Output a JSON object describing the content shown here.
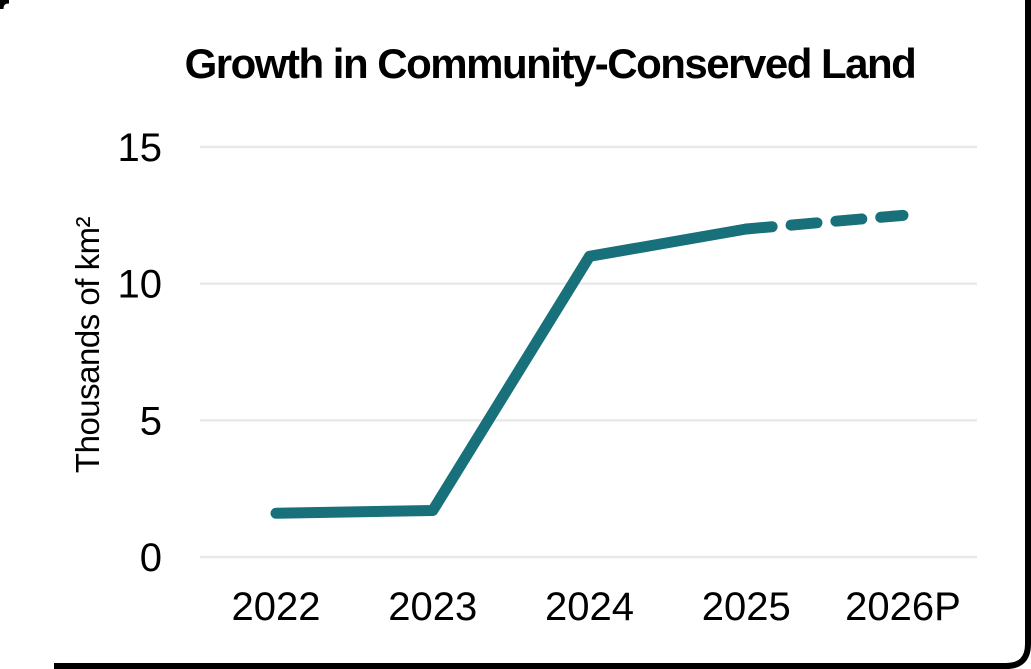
{
  "page": {
    "background": "#ffffff",
    "frame_color": "#000000"
  },
  "chart_data": {
    "type": "line",
    "title": "Growth in Community-Conserved Land",
    "ylabel": "Thousands of km²",
    "xlabel": "",
    "categories": [
      "2022",
      "2023",
      "2024",
      "2025",
      "2026P"
    ],
    "series": [
      {
        "values": [
          1.6,
          1.7,
          11,
          12,
          12.5
        ],
        "color": "#17707a",
        "solid_until_index": 3,
        "dashed_after": true,
        "dashed_segment": "2025 to 2026P drawn dashed (projected value)"
      }
    ],
    "yticks": [
      0,
      5,
      10,
      15
    ],
    "ylim": [
      0,
      15
    ],
    "grid": "horizontal",
    "gridline_color": "#e9e9e9",
    "tick_color": "#000000",
    "legend": "none"
  }
}
